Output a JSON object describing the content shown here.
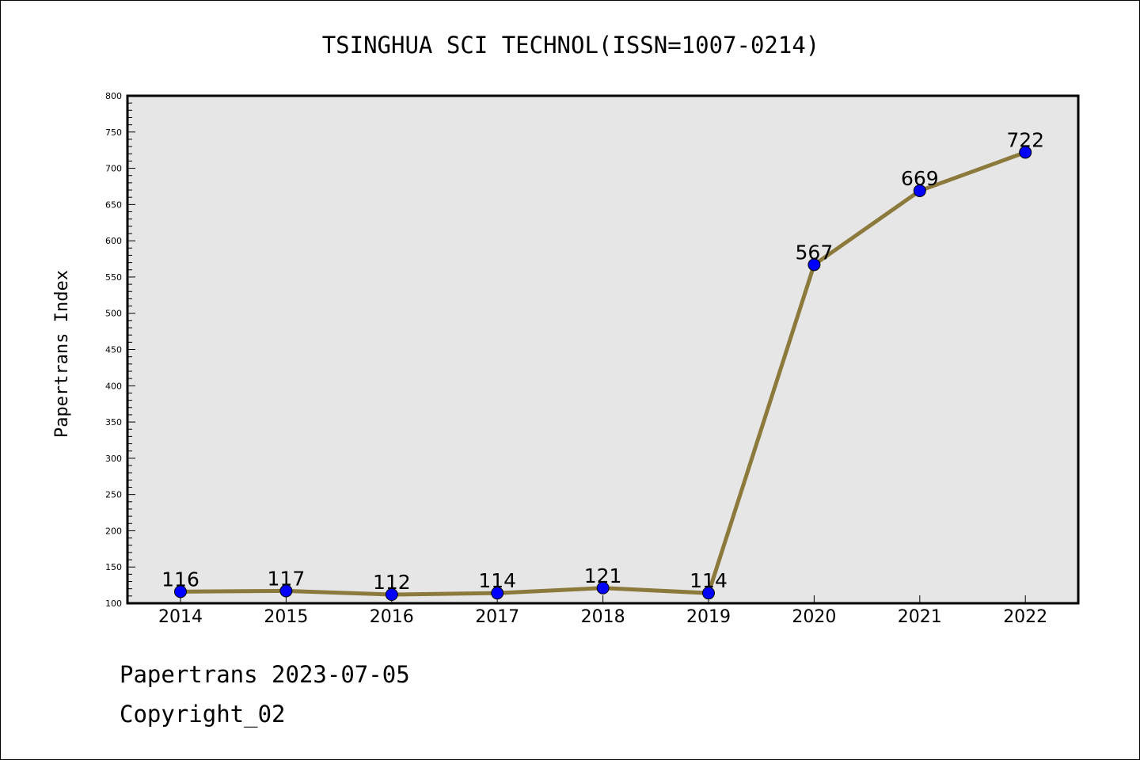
{
  "chart_data": {
    "type": "line",
    "title": "TSINGHUA SCI TECHNOL(ISSN=1007-0214)",
    "xlabel": "",
    "ylabel": "Papertrans Index",
    "categories": [
      "2014",
      "2015",
      "2016",
      "2017",
      "2018",
      "2019",
      "2020",
      "2021",
      "2022"
    ],
    "series": [
      {
        "values": [
          116,
          117,
          112,
          114,
          121,
          114,
          567,
          669,
          722
        ]
      }
    ],
    "ylim": [
      100,
      800
    ],
    "yticks": [
      100,
      150,
      200,
      250,
      300,
      350,
      400,
      450,
      500,
      550,
      600,
      650,
      700,
      750,
      800
    ],
    "grid": false,
    "data_labels": true,
    "colors": {
      "line": "#8C7A3C",
      "marker": "#0000FF",
      "plot_bg": "#E6E6E6"
    }
  },
  "footer": {
    "line1": "Papertrans 2023-07-05",
    "line2": "Copyright_02"
  }
}
